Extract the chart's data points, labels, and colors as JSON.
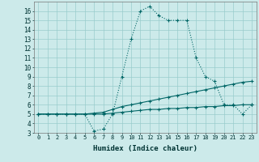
{
  "xlabel": "Humidex (Indice chaleur)",
  "bg_color": "#cceaea",
  "grid_color": "#99cccc",
  "line_color": "#006666",
  "x": [
    0,
    1,
    2,
    3,
    4,
    5,
    6,
    7,
    8,
    9,
    10,
    11,
    12,
    13,
    14,
    15,
    16,
    17,
    18,
    19,
    20,
    21,
    22,
    23
  ],
  "line1": [
    5.0,
    5.0,
    5.0,
    5.0,
    5.0,
    5.0,
    3.2,
    3.4,
    5.0,
    9.0,
    13.0,
    16.0,
    16.5,
    15.5,
    15.0,
    15.0,
    15.0,
    11.0,
    9.0,
    8.5,
    6.0,
    6.0,
    5.0,
    6.0
  ],
  "line2": [
    5.0,
    5.0,
    5.0,
    5.0,
    5.0,
    5.0,
    5.1,
    5.2,
    5.5,
    5.8,
    6.0,
    6.2,
    6.4,
    6.6,
    6.8,
    7.0,
    7.2,
    7.4,
    7.6,
    7.8,
    8.0,
    8.2,
    8.4,
    8.5
  ],
  "line3": [
    5.0,
    5.0,
    5.0,
    5.0,
    5.0,
    5.0,
    5.0,
    5.0,
    5.1,
    5.2,
    5.3,
    5.4,
    5.5,
    5.5,
    5.6,
    5.6,
    5.7,
    5.7,
    5.8,
    5.8,
    5.9,
    5.9,
    6.0,
    6.0
  ],
  "ylim": [
    3,
    17
  ],
  "xlim": [
    -0.5,
    23.5
  ],
  "yticks": [
    3,
    4,
    5,
    6,
    7,
    8,
    9,
    10,
    11,
    12,
    13,
    14,
    15,
    16
  ],
  "xticks": [
    0,
    1,
    2,
    3,
    4,
    5,
    6,
    7,
    8,
    9,
    10,
    11,
    12,
    13,
    14,
    15,
    16,
    17,
    18,
    19,
    20,
    21,
    22,
    23
  ]
}
